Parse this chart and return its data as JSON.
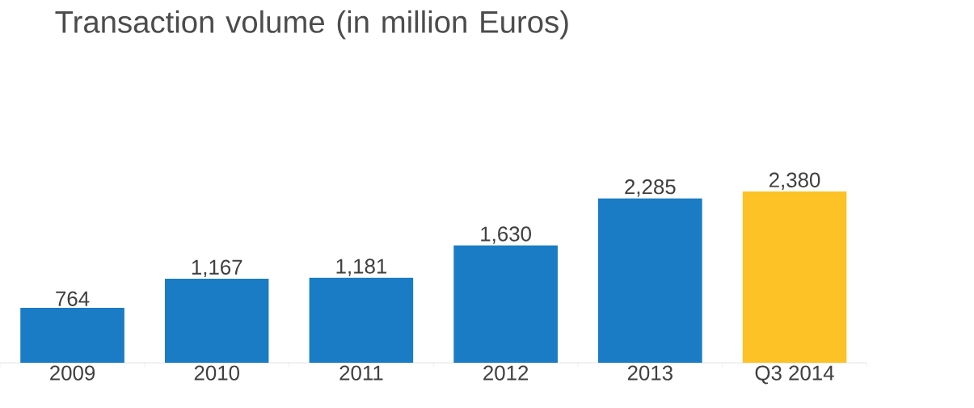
{
  "chart_data": {
    "type": "bar",
    "title": "Transaction volume (in million Euros)",
    "categories": [
      "2009",
      "2010",
      "2011",
      "2012",
      "2013",
      "Q3 2014"
    ],
    "values": [
      764,
      1167,
      1181,
      1630,
      2285,
      2380
    ],
    "colors": [
      "#1a7cc4",
      "#1a7cc4",
      "#1a7cc4",
      "#1a7cc4",
      "#1a7cc4",
      "#fcc226"
    ],
    "value_labels": [
      "764",
      "1,167",
      "1,181",
      "1,630",
      "2,285",
      "2,380"
    ]
  }
}
